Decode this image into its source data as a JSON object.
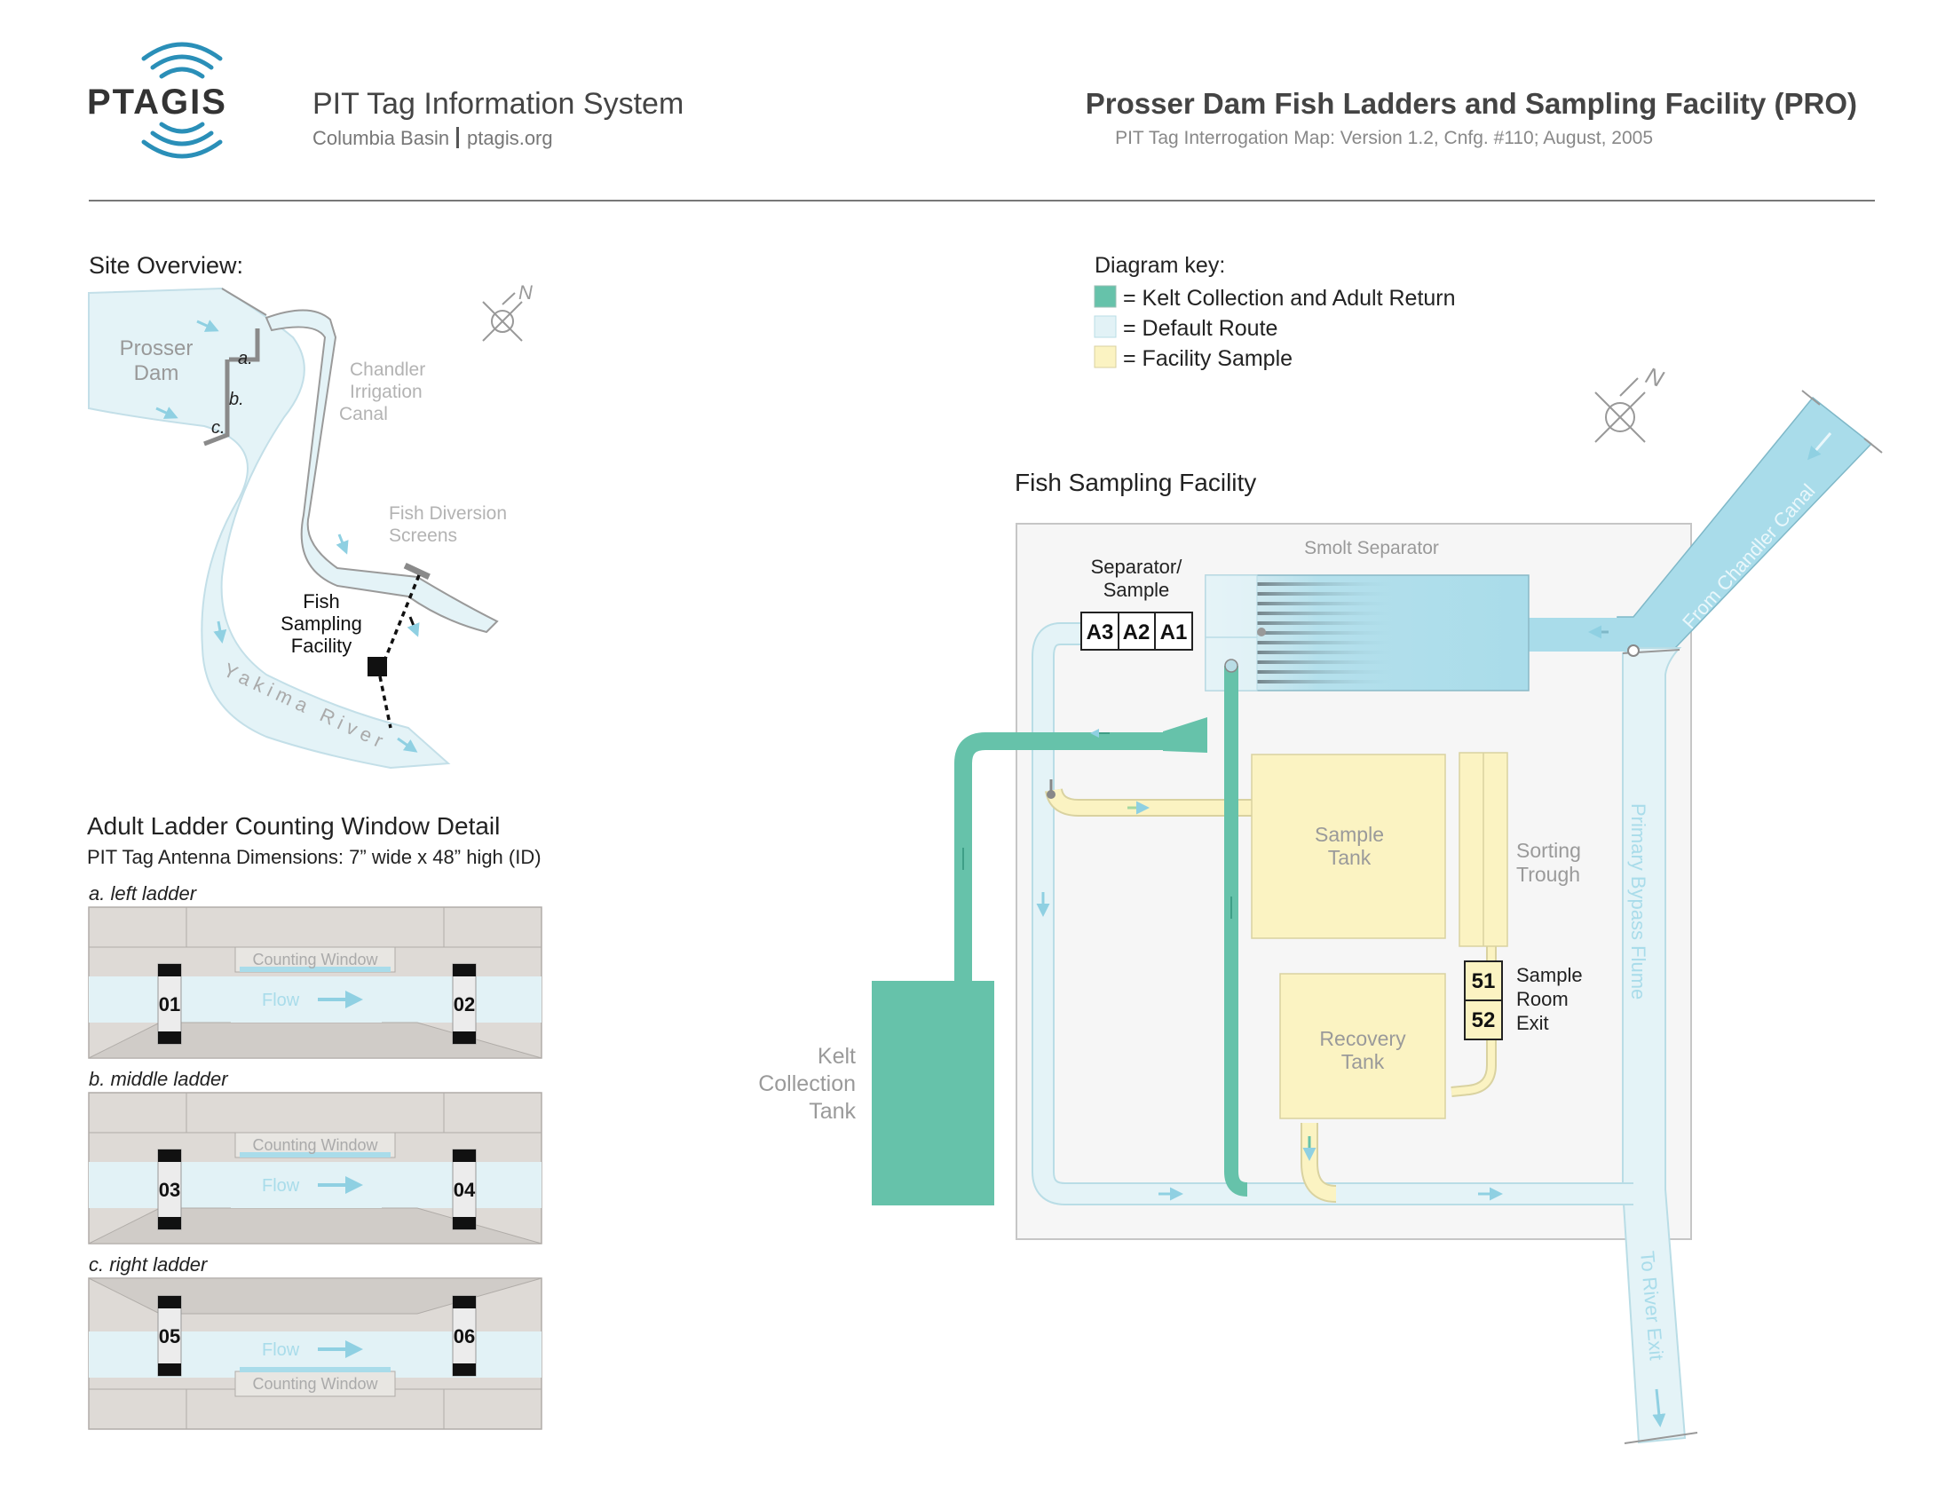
{
  "header": {
    "logo_text": "PTAGIS",
    "system_name": "PIT Tag Information System",
    "region": "Columbia Basin",
    "site_link": "ptagis.org",
    "map_title": "Prosser Dam Fish Ladders and Sampling Facility (PRO)",
    "map_subtitle": "PIT Tag Interrogation Map: Version 1.2, Cnfg. #110; August, 2005"
  },
  "overview": {
    "title": "Site Overview:",
    "north": "N",
    "dam_label": [
      "Prosser",
      "Dam"
    ],
    "ladder_marks": [
      "a.",
      "b.",
      "c."
    ],
    "canal_label": [
      "Chandler",
      "Irrigation",
      "Canal"
    ],
    "screens_label": [
      "Fish Diversion",
      "Screens"
    ],
    "facility_label": [
      "Fish",
      "Sampling",
      "Facility"
    ],
    "river_label": "Yakima River"
  },
  "window_detail": {
    "title": "Adult Ladder Counting Window Detail",
    "subtitle": "PIT Tag Antenna Dimensions: 7” wide x 48” high (ID)",
    "window_label": "Counting Window",
    "flow_label": "Flow",
    "ladders": [
      {
        "label": "a. left ladder",
        "antennas": [
          "01",
          "02"
        ]
      },
      {
        "label": "b. middle ladder",
        "antennas": [
          "03",
          "04"
        ]
      },
      {
        "label": "c. right ladder",
        "antennas": [
          "05",
          "06"
        ]
      }
    ]
  },
  "legend": {
    "title": "Diagram key:",
    "items": [
      {
        "color": "#66c2aa",
        "label": "= Kelt Collection and Adult Return"
      },
      {
        "color": "#e2f2f6",
        "label": "= Default Route"
      },
      {
        "color": "#fbf3c2",
        "label": "= Facility Sample"
      }
    ]
  },
  "facility": {
    "title": "Fish Sampling Facility",
    "north": "N",
    "smolt_separator": "Smolt Separator",
    "separator_sample": [
      "Separator/",
      "Sample"
    ],
    "separator_antennas": [
      "A3",
      "A2",
      "A1"
    ],
    "sample_tank": [
      "Sample",
      "Tank"
    ],
    "sorting_trough": [
      "Sorting",
      "Trough"
    ],
    "sample_room_antennas": [
      "51",
      "52"
    ],
    "sample_room_exit": [
      "Sample",
      "Room",
      "Exit"
    ],
    "recovery_tank": [
      "Recovery",
      "Tank"
    ],
    "kelt_tank": [
      "Kelt",
      "Collection",
      "Tank"
    ],
    "bypass_flume": "Primary Bypass Flume",
    "from_canal": "From Chandler Canal",
    "to_river": "To River Exit"
  },
  "colors": {
    "teal": "#66c2aa",
    "water": "#e2f2f6",
    "water_stroke": "#b9dde6",
    "arrow": "#8fd0e2",
    "sample": "#fbf3c2",
    "sample_stroke": "#d9d2a0",
    "concrete": "#dedad6",
    "separator": "#a9dcea"
  }
}
